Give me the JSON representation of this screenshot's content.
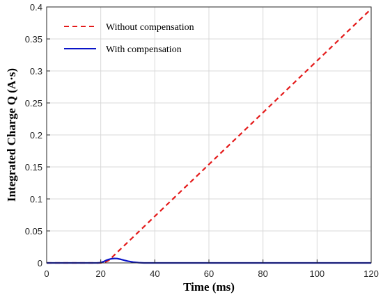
{
  "chart_data": {
    "type": "line",
    "xlabel": "Time  (ms)",
    "ylabel": "Integrated Charge Q (A·s)",
    "xlim": [
      0,
      120
    ],
    "ylim": [
      0,
      0.4
    ],
    "xticks": [
      0,
      20,
      40,
      60,
      80,
      100,
      120
    ],
    "yticks": [
      0,
      0.05,
      0.1,
      0.15,
      0.2,
      0.25,
      0.3,
      0.35,
      0.4
    ],
    "xtick_labels": [
      "0",
      "20",
      "40",
      "60",
      "80",
      "100",
      "120"
    ],
    "ytick_labels": [
      "0",
      "0.05",
      "0.1",
      "0.15",
      "0.2",
      "0.25",
      "0.3",
      "0.35",
      "0.4"
    ],
    "grid": true,
    "legend_position": "top-left",
    "series": [
      {
        "name": "Without compensation",
        "color": "#e41a1a",
        "style": "dashed",
        "x": [
          0,
          20,
          21,
          22,
          23,
          120
        ],
        "y": [
          0,
          0,
          0.0005,
          0.002,
          0.004,
          0.397
        ]
      },
      {
        "name": "With compensation",
        "color": "#0a14c8",
        "style": "solid",
        "x": [
          0,
          19,
          20,
          21,
          22,
          23,
          24,
          25,
          26,
          27,
          28,
          29,
          30,
          32,
          34,
          36,
          120
        ],
        "y": [
          0,
          0,
          0.0005,
          0.002,
          0.004,
          0.0055,
          0.0065,
          0.007,
          0.0068,
          0.006,
          0.005,
          0.0038,
          0.0028,
          0.0013,
          0.0004,
          0,
          0
        ]
      }
    ]
  }
}
